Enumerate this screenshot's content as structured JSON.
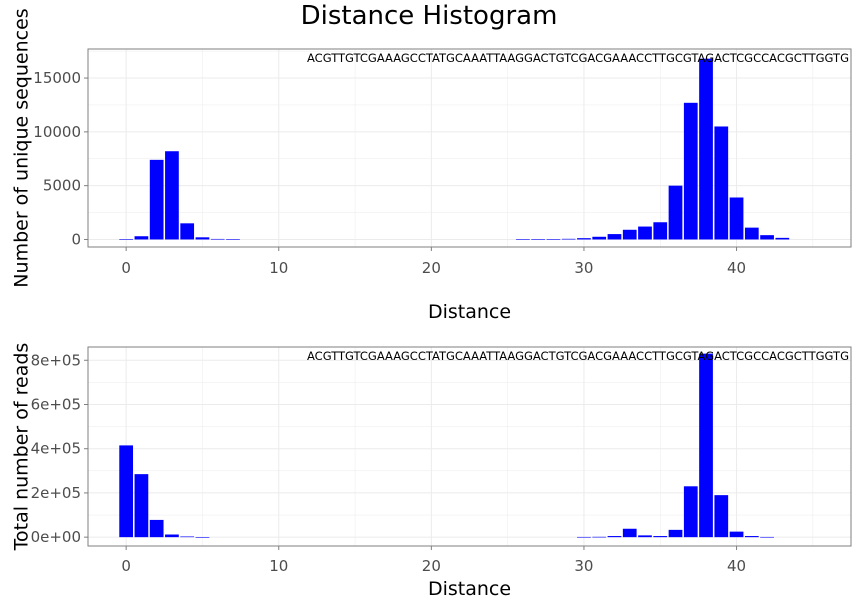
{
  "title": "Distance Histogram",
  "colors": {
    "bar": "#0000ff",
    "grid": "#ebebeb",
    "frame": "#7f7f7f",
    "text": "#000000",
    "tick_text": "#4d4d4d"
  },
  "chart_data": [
    {
      "type": "bar",
      "title": "Distance Histogram",
      "annotation": "ACGTTGTCGAAAGCCTATGCAAATTAAGGACTGTCGACGAAACCTTGCGTAGACTCGCCACGCTTGGTG",
      "xlabel": "Distance",
      "ylabel": "Number of unique sequences",
      "xlim": [
        -2.5,
        47.5
      ],
      "ylim": [
        -700,
        17700
      ],
      "x_ticks": [
        0,
        10,
        20,
        30,
        40
      ],
      "x_tick_labels": [
        "0",
        "10",
        "20",
        "30",
        "40"
      ],
      "y_ticks": [
        0,
        5000,
        10000,
        15000
      ],
      "y_tick_labels": [
        "0",
        "5000",
        "10000",
        "15000"
      ],
      "grid": true,
      "x": [
        0,
        1,
        2,
        3,
        4,
        5,
        6,
        7,
        26,
        27,
        28,
        29,
        30,
        31,
        32,
        33,
        34,
        35,
        36,
        37,
        38,
        39,
        40,
        41,
        42,
        43
      ],
      "values": [
        20,
        300,
        7400,
        8200,
        1500,
        200,
        50,
        10,
        10,
        20,
        40,
        60,
        120,
        250,
        500,
        900,
        1200,
        1600,
        5000,
        12700,
        16800,
        10500,
        3900,
        1100,
        400,
        150
      ]
    },
    {
      "type": "bar",
      "annotation": "ACGTTGTCGAAAGCCTATGCAAATTAAGGACTGTCGACGAAACCTTGCGTAGACTCGCCACGCTTGGTG",
      "xlabel": "Distance",
      "ylabel": "Total number of reads",
      "xlim": [
        -2.5,
        47.5
      ],
      "ylim": [
        -40000,
        860000
      ],
      "x_ticks": [
        0,
        10,
        20,
        30,
        40
      ],
      "x_tick_labels": [
        "0",
        "10",
        "20",
        "30",
        "40"
      ],
      "y_ticks": [
        0,
        200000,
        400000,
        600000,
        800000
      ],
      "y_tick_labels": [
        "0e+00",
        "2e+05",
        "4e+05",
        "6e+05",
        "8e+05"
      ],
      "grid": true,
      "x": [
        0,
        1,
        2,
        3,
        4,
        5,
        30,
        31,
        32,
        33,
        34,
        35,
        36,
        37,
        38,
        39,
        40,
        41,
        42
      ],
      "values": [
        415000,
        285000,
        78000,
        12000,
        3000,
        500,
        1000,
        1500,
        5000,
        38000,
        8000,
        5000,
        33000,
        230000,
        830000,
        190000,
        25000,
        5000,
        1000
      ]
    }
  ]
}
